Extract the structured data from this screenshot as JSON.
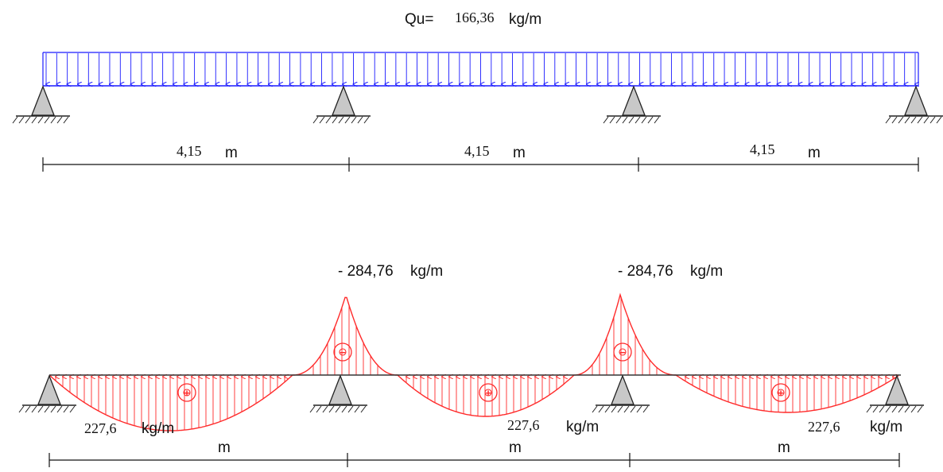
{
  "load": {
    "prefix": "Qu=",
    "value": "166,36",
    "unit": "kg/m",
    "color": "#1a1aff"
  },
  "spans": [
    {
      "length": "4,15",
      "unit": "m"
    },
    {
      "length": "4,15",
      "unit": "m"
    },
    {
      "length": "4,15",
      "unit": "m"
    }
  ],
  "moment": {
    "color": "#ff2a2a",
    "support_moments": [
      {
        "value": "- 284,76",
        "unit": "kg/m"
      },
      {
        "value": "- 284,76",
        "unit": "kg/m"
      }
    ],
    "span_moments": [
      {
        "value": "227,6",
        "unit": "kg/m"
      },
      {
        "value": "227,6",
        "unit": "kg/m"
      },
      {
        "value": "227,6",
        "unit": "kg/m"
      }
    ],
    "sign_positive": "+",
    "sign_negative": "−"
  },
  "bottom_dims": [
    {
      "unit": "m"
    },
    {
      "unit": "m"
    },
    {
      "unit": "m"
    }
  ]
}
